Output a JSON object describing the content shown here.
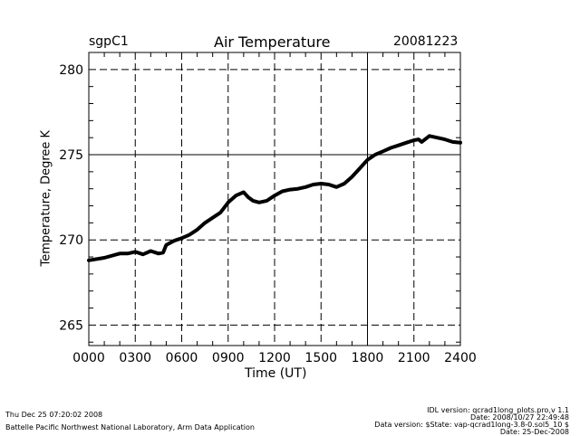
{
  "header": {
    "site": "sgpC1",
    "date": "20081223"
  },
  "footer": {
    "left_line1": "Thu Dec 25 07:20:02 2008",
    "left_line2": "Battelle Pacific Northwest National Laboratory, Arm Data Application",
    "right_lines": [
      "IDL version: qcrad1long_plots.pro,v 1.1",
      "Date: 2008/10/27 22:49:48",
      "Data version: $State: vap-qcrad1long-3.8-0.sol5_10 $",
      "Date: 25-Dec-2008"
    ]
  },
  "colors": {
    "line": "#000000",
    "grid": "#000000",
    "background": "#ffffff"
  },
  "chart_data": {
    "type": "line",
    "title": "Air Temperature",
    "xlabel": "Time (UT)",
    "ylabel": "Temperature, Degree K",
    "xlim": [
      0,
      2400
    ],
    "ylim": [
      263.8,
      281
    ],
    "grid": true,
    "x_ticks": [
      "0000",
      "0300",
      "0600",
      "0900",
      "1200",
      "1500",
      "1800",
      "2100",
      "2400"
    ],
    "x_tick_values": [
      0,
      300,
      600,
      900,
      1200,
      1500,
      1800,
      2100,
      2400
    ],
    "y_ticks": [
      "265",
      "270",
      "275",
      "280"
    ],
    "y_tick_values": [
      265,
      270,
      275,
      280
    ],
    "series": [
      {
        "name": "Air Temperature",
        "x": [
          0,
          100,
          200,
          250,
          300,
          350,
          400,
          450,
          480,
          500,
          520,
          550,
          600,
          650,
          700,
          750,
          800,
          850,
          900,
          950,
          1000,
          1030,
          1060,
          1100,
          1150,
          1200,
          1250,
          1300,
          1350,
          1400,
          1450,
          1500,
          1550,
          1600,
          1650,
          1700,
          1750,
          1800,
          1850,
          1900,
          1950,
          2000,
          2050,
          2100,
          2130,
          2150,
          2200,
          2250,
          2300,
          2350,
          2400
        ],
        "values": [
          268.8,
          268.95,
          269.2,
          269.2,
          269.3,
          269.15,
          269.35,
          269.2,
          269.25,
          269.7,
          269.8,
          269.95,
          270.1,
          270.3,
          270.6,
          271.0,
          271.3,
          271.6,
          272.2,
          272.6,
          272.8,
          272.5,
          272.3,
          272.2,
          272.3,
          272.6,
          272.85,
          272.95,
          273.0,
          273.1,
          273.25,
          273.3,
          273.25,
          273.1,
          273.3,
          273.7,
          274.2,
          274.7,
          275.0,
          275.2,
          275.4,
          275.55,
          275.7,
          275.85,
          275.9,
          275.75,
          276.1,
          276.0,
          275.9,
          275.75,
          275.7
        ]
      }
    ]
  }
}
